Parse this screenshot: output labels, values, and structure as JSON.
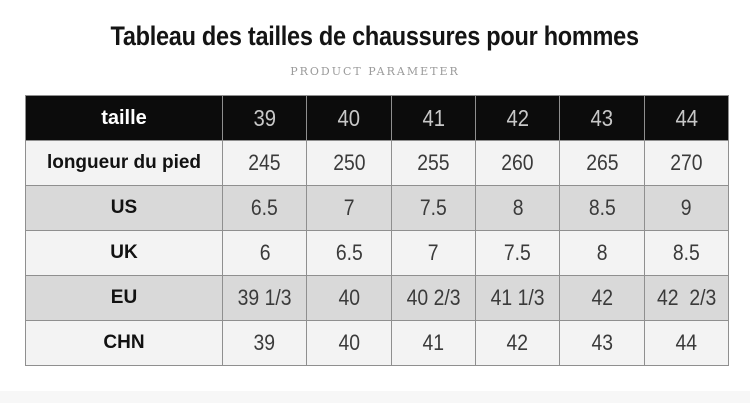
{
  "colors": {
    "title_text": "#141414",
    "subtitle_text": "#9a9a9a",
    "header_bg": "#0c0c0c",
    "header_label_text": "#ffffff",
    "header_value_text": "#c8c8c8",
    "row_light": "#f3f3f3",
    "row_gray": "#d9d9d9",
    "border": "#8f8f8f",
    "label_text": "#121212",
    "value_text": "#3a3a3a",
    "strip_bg": "#f7f7f7"
  },
  "chart_data": {
    "type": "table",
    "title": "Tableau des tailles de chaussures pour hommes",
    "subtitle": "PRODUCT PARAMETER",
    "header": [
      "taille",
      "39",
      "40",
      "41",
      "42",
      "43",
      "44"
    ],
    "rows": [
      {
        "label": "longueur du pied",
        "values": [
          "245",
          "250",
          "255",
          "260",
          "265",
          "270"
        ],
        "shaded": false
      },
      {
        "label": "US",
        "values": [
          "6.5",
          "7",
          "7.5",
          "8",
          "8.5",
          "9"
        ],
        "shaded": true
      },
      {
        "label": "UK",
        "values": [
          "6",
          "6.5",
          "7",
          "7.5",
          "8",
          "8.5"
        ],
        "shaded": false
      },
      {
        "label": "EU",
        "values": [
          "39 1/3",
          "40",
          "40 2/3",
          "41 1/3",
          "42",
          "42  2/3"
        ],
        "shaded": true
      },
      {
        "label": "CHN",
        "values": [
          "39",
          "40",
          "41",
          "42",
          "43",
          "44"
        ],
        "shaded": false
      }
    ]
  }
}
